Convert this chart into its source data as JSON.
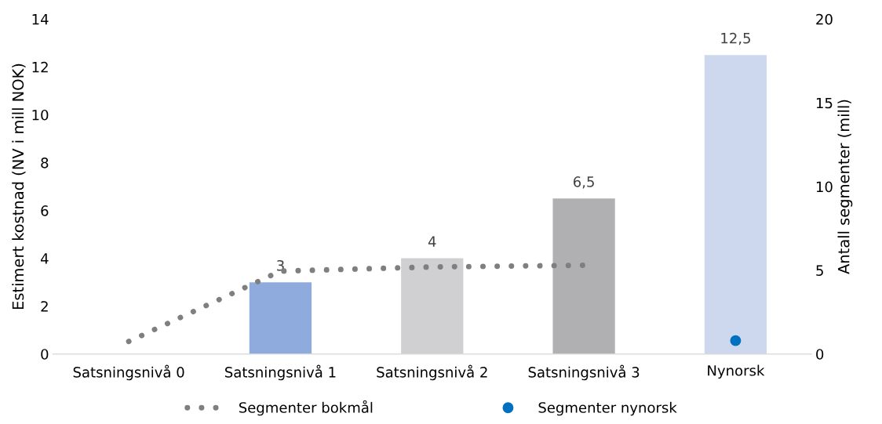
{
  "chart_data": {
    "type": "bar",
    "categories": [
      "Satsningsnivå 0",
      "Satsningsnivå 1",
      "Satsningsnivå 2",
      "Satsningsnivå 3",
      "Nynorsk"
    ],
    "ylabel": "Estimert kostnad (NV i mill NOK)",
    "y2label": "Antall segmenter (mill)",
    "ylim": [
      0,
      14
    ],
    "yticks": [
      0,
      2,
      4,
      6,
      8,
      10,
      12,
      14
    ],
    "y2lim": [
      0,
      20
    ],
    "y2ticks": [
      0,
      5,
      10,
      15,
      20
    ],
    "series": [
      {
        "values": [
          null,
          3,
          4,
          6.5,
          12.5
        ],
        "colors": [
          "#8faadc",
          "#8faadc",
          "#d0d0d2",
          "#b0b0b2",
          "#cdd7ee"
        ],
        "value_labels": [
          null,
          "3",
          "4",
          "6,5",
          "12,5"
        ]
      },
      {
        "type": "line",
        "name": "Segmenter bokmål",
        "axis": "y2",
        "color": "#7f7f7f",
        "line_style": "dotted",
        "values": [
          0.75,
          4.95,
          5.2,
          5.3,
          null
        ]
      },
      {
        "type": "scatter",
        "name": "Segmenter nynorsk",
        "axis": "y2",
        "color": "#0070c0",
        "marker": "circle",
        "x": [
          "Nynorsk"
        ],
        "values": [
          0.8
        ]
      }
    ],
    "grid": false,
    "legend": "bottom"
  }
}
